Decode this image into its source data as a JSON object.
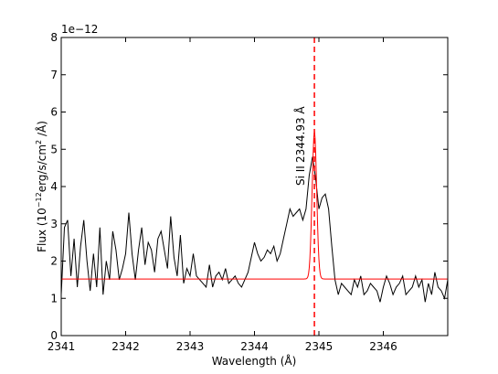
{
  "chart_data": {
    "type": "line",
    "title": "",
    "xlabel": "Wavelength (Å)",
    "ylabel_parts": [
      "Flux (10",
      "−12",
      "erg/s/cm",
      "2",
      " /Å)"
    ],
    "offset_text": "1e−12",
    "xlim": [
      2341.0,
      2347.0
    ],
    "ylim": [
      0,
      8
    ],
    "x_ticks": [
      2341,
      2342,
      2343,
      2344,
      2345,
      2346
    ],
    "x_tick_labels": [
      "2341",
      "2342",
      "2343",
      "2344",
      "2345",
      "2346"
    ],
    "y_ticks": [
      0,
      1,
      2,
      3,
      4,
      5,
      6,
      7,
      8
    ],
    "y_tick_labels": [
      "0",
      "1",
      "2",
      "3",
      "4",
      "5",
      "6",
      "7",
      "8"
    ],
    "grid": false,
    "annotation": {
      "species": "Si II",
      "wavelength": "2344.93 Å",
      "x": 2344.93
    },
    "reference_line": {
      "x": 2344.93,
      "color": "#ff0000",
      "style": "dashed"
    },
    "series": [
      {
        "color": "#000000",
        "x": [
          2341.0,
          2341.05,
          2341.1,
          2341.15,
          2341.2,
          2341.25,
          2341.3,
          2341.35,
          2341.4,
          2341.45,
          2341.5,
          2341.55,
          2341.6,
          2341.65,
          2341.7,
          2341.75,
          2341.8,
          2341.85,
          2341.9,
          2341.95,
          2342.0,
          2342.05,
          2342.1,
          2342.15,
          2342.2,
          2342.25,
          2342.3,
          2342.35,
          2342.4,
          2342.45,
          2342.5,
          2342.55,
          2342.6,
          2342.65,
          2342.7,
          2342.75,
          2342.8,
          2342.85,
          2342.9,
          2342.95,
          2343.0,
          2343.05,
          2343.1,
          2343.15,
          2343.2,
          2343.25,
          2343.3,
          2343.35,
          2343.4,
          2343.45,
          2343.5,
          2343.55,
          2343.6,
          2343.65,
          2343.7,
          2343.75,
          2343.8,
          2343.85,
          2343.9,
          2343.95,
          2344.0,
          2344.05,
          2344.1,
          2344.15,
          2344.2,
          2344.25,
          2344.3,
          2344.35,
          2344.4,
          2344.45,
          2344.5,
          2344.55,
          2344.6,
          2344.65,
          2344.7,
          2344.75,
          2344.8,
          2344.85,
          2344.9,
          2344.95,
          2345.0,
          2345.05,
          2345.1,
          2345.15,
          2345.2,
          2345.25,
          2345.3,
          2345.35,
          2345.4,
          2345.45,
          2345.5,
          2345.55,
          2345.6,
          2345.65,
          2345.7,
          2345.75,
          2345.8,
          2345.85,
          2345.9,
          2345.95,
          2346.0,
          2346.05,
          2346.1,
          2346.15,
          2346.2,
          2346.25,
          2346.3,
          2346.35,
          2346.4,
          2346.45,
          2346.5,
          2346.55,
          2346.6,
          2346.65,
          2346.7,
          2346.75,
          2346.8,
          2346.85,
          2346.9,
          2346.95,
          2347.0
        ],
        "y": [
          1.1,
          2.9,
          3.1,
          1.6,
          2.6,
          1.3,
          2.4,
          3.1,
          2.0,
          1.2,
          2.2,
          1.3,
          2.9,
          1.1,
          2.0,
          1.5,
          2.8,
          2.3,
          1.5,
          1.8,
          2.2,
          3.3,
          2.2,
          1.5,
          2.3,
          2.9,
          1.9,
          2.5,
          2.3,
          1.7,
          2.6,
          2.8,
          2.3,
          1.8,
          3.2,
          2.1,
          1.6,
          2.7,
          1.4,
          1.8,
          1.6,
          2.2,
          1.6,
          1.5,
          1.4,
          1.3,
          1.9,
          1.3,
          1.6,
          1.7,
          1.5,
          1.8,
          1.4,
          1.5,
          1.6,
          1.4,
          1.3,
          1.5,
          1.7,
          2.1,
          2.5,
          2.2,
          2.0,
          2.1,
          2.3,
          2.2,
          2.4,
          2.0,
          2.2,
          2.6,
          3.0,
          3.4,
          3.2,
          3.3,
          3.4,
          3.1,
          3.4,
          4.3,
          4.8,
          4.2,
          3.4,
          3.7,
          3.8,
          3.4,
          2.4,
          1.5,
          1.1,
          1.4,
          1.3,
          1.2,
          1.1,
          1.5,
          1.3,
          1.6,
          1.1,
          1.2,
          1.4,
          1.3,
          1.2,
          0.9,
          1.3,
          1.6,
          1.4,
          1.1,
          1.3,
          1.4,
          1.6,
          1.1,
          1.2,
          1.3,
          1.6,
          1.3,
          1.5,
          0.9,
          1.4,
          1.1,
          1.7,
          1.3,
          1.2,
          1.0,
          1.5
        ]
      },
      {
        "color": "#ff0000",
        "model": "gaussian",
        "baseline": 1.52,
        "peak": 5.48,
        "center": 2344.93,
        "sigma": 0.035
      }
    ]
  }
}
